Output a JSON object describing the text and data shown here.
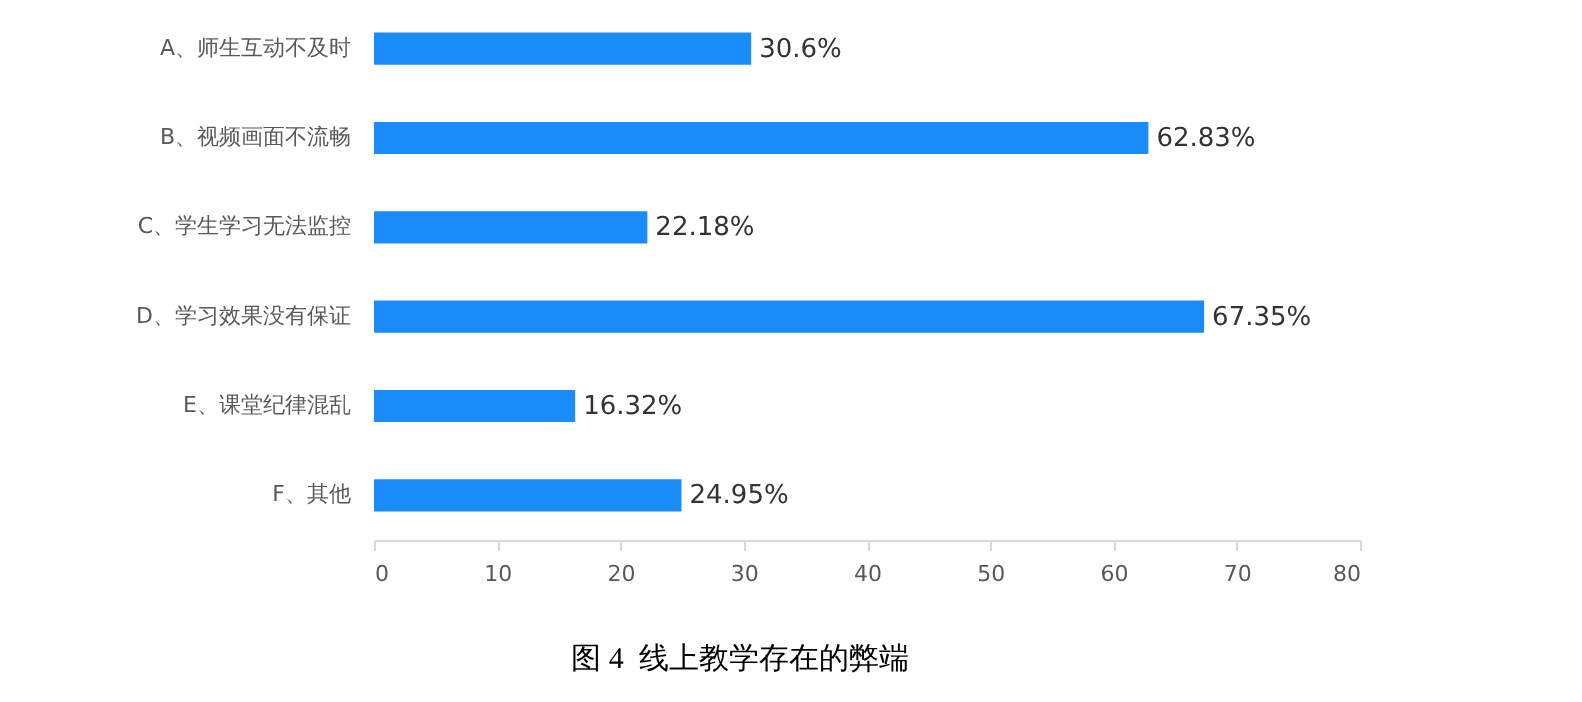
{
  "chart_data": {
    "type": "bar",
    "orientation": "horizontal",
    "categories": [
      "A、师生互动不及时",
      "B、视频画面不流畅",
      "C、学生学习无法监控",
      "D、学习效果没有保证",
      "E、课堂纪律混乱",
      "F、其他"
    ],
    "values": [
      30.6,
      62.83,
      22.18,
      67.35,
      16.32,
      24.95
    ],
    "value_labels": [
      "30.6%",
      "62.83%",
      "22.18%",
      "67.35%",
      "16.32%",
      "24.95%"
    ],
    "color": "#1a8cfa",
    "xlim": [
      0,
      80
    ],
    "xticks": [
      0,
      10,
      20,
      30,
      40,
      50,
      60,
      70,
      80
    ],
    "grid": false,
    "annotations": [
      "图 4  线上教学存在的弊端"
    ]
  }
}
